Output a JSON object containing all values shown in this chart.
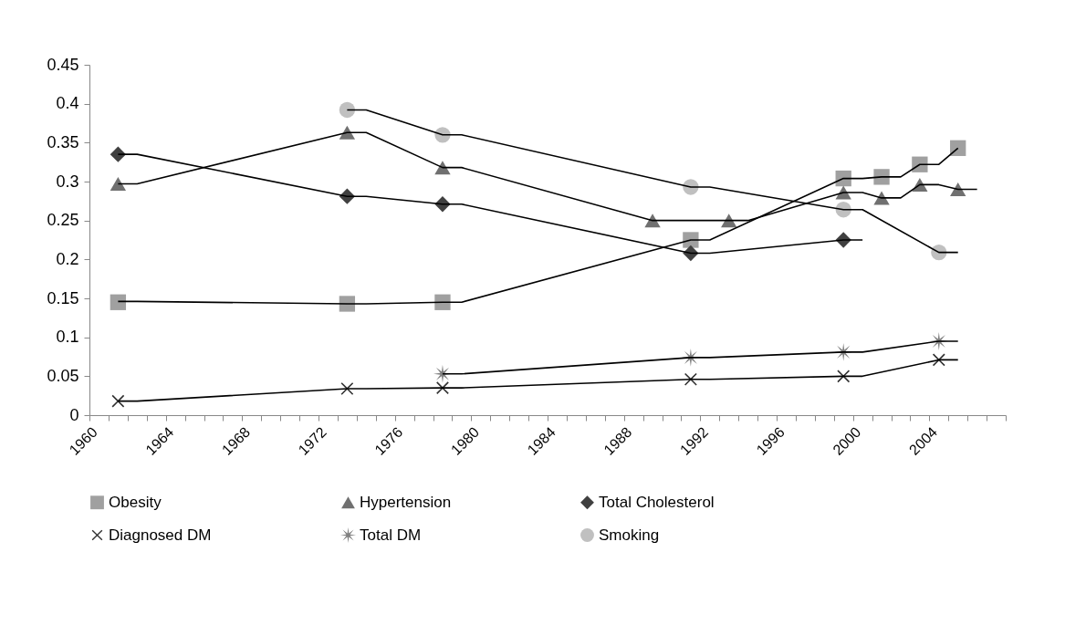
{
  "chart_data": {
    "type": "scatter",
    "legend": "bottom",
    "grid": false,
    "xlim": [
      1960,
      2008
    ],
    "xticks": [
      1960,
      {
        "value": 1961,
        "label": null
      },
      {
        "value": 1962,
        "label": null
      },
      {
        "value": 1963,
        "label": null
      },
      1964,
      {
        "value": 1965,
        "label": null
      },
      {
        "value": 1966,
        "label": null
      },
      {
        "value": 1967,
        "label": null
      },
      1968,
      {
        "value": 1969,
        "label": null
      },
      {
        "value": 1970,
        "label": null
      },
      {
        "value": 1971,
        "label": null
      },
      1972,
      {
        "value": 1973,
        "label": null
      },
      {
        "value": 1974,
        "label": null
      },
      {
        "value": 1975,
        "label": null
      },
      1976,
      {
        "value": 1977,
        "label": null
      },
      {
        "value": 1978,
        "label": null
      },
      {
        "value": 1979,
        "label": null
      },
      1980,
      {
        "value": 1981,
        "label": null
      },
      {
        "value": 1982,
        "label": null
      },
      {
        "value": 1983,
        "label": null
      },
      1984,
      {
        "value": 1985,
        "label": null
      },
      {
        "value": 1986,
        "label": null
      },
      {
        "value": 1987,
        "label": null
      },
      1988,
      {
        "value": 1989,
        "label": null
      },
      {
        "value": 1990,
        "label": null
      },
      {
        "value": 1991,
        "label": null
      },
      1992,
      {
        "value": 1993,
        "label": null
      },
      {
        "value": 1994,
        "label": null
      },
      {
        "value": 1995,
        "label": null
      },
      1996,
      {
        "value": 1997,
        "label": null
      },
      {
        "value": 1998,
        "label": null
      },
      {
        "value": 1999,
        "label": null
      },
      2000,
      {
        "value": 2001,
        "label": null
      },
      {
        "value": 2002,
        "label": null
      },
      {
        "value": 2003,
        "label": null
      },
      2004,
      {
        "value": 2005,
        "label": null
      },
      {
        "value": 2006,
        "label": null
      },
      {
        "value": 2007,
        "label": null
      },
      {
        "value": 2008,
        "label": null
      }
    ],
    "ylim": [
      0,
      0.45
    ],
    "yticks": [
      0,
      0.05,
      0.1,
      0.15,
      0.2,
      0.25,
      0.3,
      0.35,
      0.4,
      0.45
    ],
    "series": [
      {
        "name": "Obesity",
        "marker": "square",
        "color": "#a0a0a0",
        "x": [
          1961.5,
          1973.5,
          1978.5,
          1991.5,
          1999.5,
          2001.5,
          2003.5,
          2005.5
        ],
        "values": [
          0.145,
          0.143,
          0.145,
          0.225,
          0.304,
          0.306,
          0.322,
          0.343
        ]
      },
      {
        "name": "Hypertension",
        "marker": "triangle",
        "color": "#707070",
        "x": [
          1961.5,
          1973.5,
          1978.5,
          1989.5,
          1993.5,
          1999.5,
          2001.5,
          2003.5,
          2005.5
        ],
        "values": [
          0.297,
          0.363,
          0.318,
          0.25,
          0.25,
          0.286,
          0.279,
          0.296,
          0.29
        ]
      },
      {
        "name": "Total Cholesterol",
        "marker": "diamond",
        "color": "#404040",
        "x": [
          1961.5,
          1973.5,
          1978.5,
          1991.5,
          1999.5
        ],
        "values": [
          0.335,
          0.281,
          0.271,
          0.208,
          0.225
        ]
      },
      {
        "name": "Diagnosed DM",
        "marker": "cross",
        "color": "#303030",
        "x": [
          1961.5,
          1973.5,
          1978.5,
          1991.5,
          1999.5,
          2004.5
        ],
        "values": [
          0.018,
          0.034,
          0.035,
          0.046,
          0.05,
          0.071
        ]
      },
      {
        "name": "Total DM",
        "marker": "star",
        "color": "#808080",
        "x": [
          1978.5,
          1991.5,
          1999.5,
          2004.5
        ],
        "values": [
          0.053,
          0.074,
          0.081,
          0.095
        ]
      },
      {
        "name": "Smoking",
        "marker": "circle",
        "color": "#c0c0c0",
        "x": [
          1973.5,
          1978.5,
          1991.5,
          1999.5,
          2004.5
        ],
        "values": [
          0.392,
          0.36,
          0.293,
          0.264,
          0.209
        ]
      },
      {
        "type": "line",
        "color": "#000000",
        "x": [
          1961.5,
          1962.5,
          1973.5,
          1974.5,
          1978.5,
          1979.5,
          1991.5,
          1992.5,
          1999.5,
          2000.5,
          2001.5,
          2002.5,
          2003.5,
          2004.5,
          2005.5
        ],
        "values": [
          0.146,
          0.146,
          0.143,
          0.143,
          0.145,
          0.145,
          0.225,
          0.225,
          0.304,
          0.304,
          0.306,
          0.306,
          0.322,
          0.322,
          0.343
        ]
      },
      {
        "type": "line",
        "color": "#000000",
        "x": [
          1961.5,
          1962.5,
          1973.5,
          1974.5,
          1978.5,
          1979.5,
          1989.5,
          1994.5,
          1999.5,
          2000.5,
          2001.5,
          2002.5,
          2003.5,
          2004.5,
          2005.5,
          2006.5
        ],
        "values": [
          0.297,
          0.297,
          0.363,
          0.363,
          0.318,
          0.318,
          0.25,
          0.25,
          0.286,
          0.286,
          0.279,
          0.279,
          0.296,
          0.296,
          0.29,
          0.29
        ]
      },
      {
        "type": "line",
        "color": "#000000",
        "x": [
          1961.5,
          1962.5,
          1973.5,
          1974.5,
          1978.5,
          1979.5,
          1991.5,
          1992.5,
          1999.5,
          2000.5
        ],
        "values": [
          0.335,
          0.335,
          0.281,
          0.281,
          0.271,
          0.271,
          0.208,
          0.208,
          0.225,
          0.225
        ]
      },
      {
        "type": "line",
        "color": "#000000",
        "x": [
          1961.5,
          1962.5,
          1973.5,
          1974.5,
          1978.5,
          1979.5,
          1991.5,
          1992.5,
          1999.5,
          2000.5,
          2004.5,
          2005.5
        ],
        "values": [
          0.018,
          0.018,
          0.034,
          0.034,
          0.035,
          0.035,
          0.046,
          0.046,
          0.05,
          0.05,
          0.071,
          0.071
        ]
      },
      {
        "type": "line",
        "color": "#000000",
        "x": [
          1978.5,
          1979.5,
          1991.5,
          1992.5,
          1999.5,
          2000.5,
          2004.5,
          2005.5
        ],
        "values": [
          0.053,
          0.053,
          0.074,
          0.074,
          0.081,
          0.081,
          0.095,
          0.095
        ]
      },
      {
        "type": "line",
        "color": "#000000",
        "x": [
          1973.5,
          1974.5,
          1978.5,
          1979.5,
          1991.5,
          1992.5,
          1999.5,
          2000.5,
          2004.5,
          2005.5
        ],
        "values": [
          0.392,
          0.392,
          0.36,
          0.36,
          0.293,
          0.293,
          0.264,
          0.264,
          0.209,
          0.209
        ]
      }
    ]
  }
}
